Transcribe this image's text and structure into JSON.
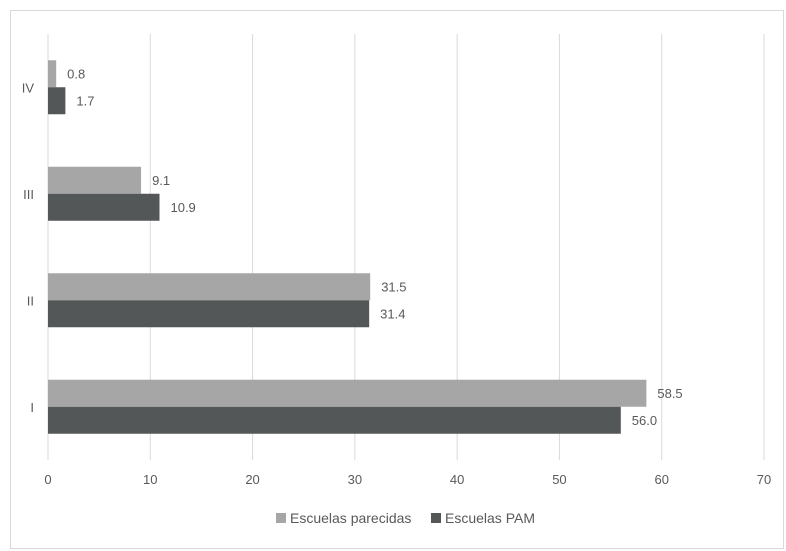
{
  "chart_data": {
    "type": "bar",
    "orientation": "horizontal",
    "title": "",
    "xlabel": "",
    "ylabel": "",
    "categories": [
      "IV",
      "III",
      "II",
      "I"
    ],
    "series": [
      {
        "name": "Escuelas parecidas",
        "values": [
          0.8,
          9.1,
          31.5,
          58.5
        ],
        "labels": [
          "0.8",
          "9.1",
          "31.5",
          "58.5"
        ],
        "color": "#a6a6a6"
      },
      {
        "name": "Escuelas PAM",
        "values": [
          1.7,
          10.9,
          31.4,
          56.0
        ],
        "labels": [
          "1.7",
          "10.9",
          "31.4",
          "56.0"
        ],
        "color": "#545757"
      }
    ],
    "xlim": [
      0,
      70
    ],
    "xticks": [
      0,
      10,
      20,
      30,
      40,
      50,
      60,
      70
    ],
    "xtick_labels": [
      "0",
      "10",
      "20",
      "30",
      "40",
      "50",
      "60",
      "70"
    ],
    "grid": true,
    "gridline_color": "#d9d9d9",
    "legend_position": "bottom"
  }
}
